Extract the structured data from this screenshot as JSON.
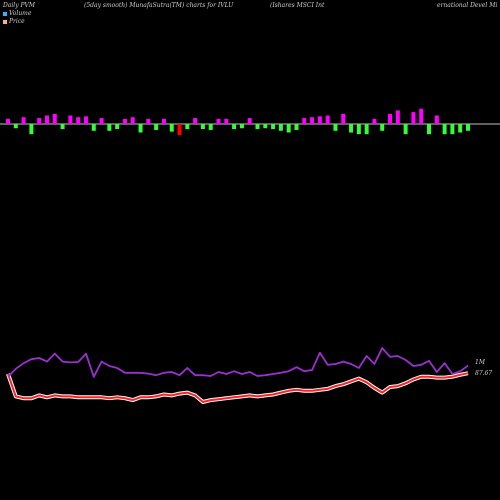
{
  "header": {
    "left": "Daily PVM",
    "smooth": "(5day smooth) MunafaSutra(TM) charts for IVLU",
    "name_part1": "(Ishares MSCI Int",
    "name_part2": "ernational Devel Mi"
  },
  "legend": {
    "volume_label": "Volume",
    "price_label": "Price",
    "volume_color": "#2db7ff",
    "price_color": "#ffb07a"
  },
  "colors": {
    "background": "#000000",
    "pos_bar": "#ff00ff",
    "neg_bar": "#33ff33",
    "mixed_bar": "#ff0000",
    "price_line": "#ff2020",
    "price_glow": "#ffffff",
    "volume_line": "#9b30d0",
    "baseline": "#ffffff"
  },
  "chart_data": {
    "type": "line",
    "x": [
      1,
      2,
      3,
      4,
      5,
      6,
      7,
      8,
      9,
      10,
      11,
      12,
      13,
      14,
      15,
      16,
      17,
      18,
      19,
      20,
      21,
      22,
      23,
      24,
      25,
      26,
      27,
      28,
      29,
      30,
      31,
      32,
      33,
      34,
      35,
      36,
      37,
      38,
      39,
      40,
      41,
      42,
      43,
      44,
      45,
      46,
      47,
      48,
      49,
      50,
      51,
      52,
      53,
      54,
      55,
      56,
      57,
      58,
      59,
      60
    ],
    "flow_bars": [
      6,
      -5,
      8,
      -12,
      7,
      10,
      12,
      -6,
      10,
      8,
      9,
      -8,
      7,
      -8,
      -6,
      6,
      8,
      -10,
      6,
      -7,
      6,
      -9,
      -13,
      -6,
      7,
      -6,
      -7,
      6,
      6,
      -6,
      -5,
      7,
      -6,
      -5,
      -6,
      -8,
      -10,
      -7,
      7,
      8,
      9,
      10,
      -8,
      12,
      -10,
      -12,
      -12,
      6,
      -8,
      12,
      16,
      -12,
      14,
      18,
      -12,
      10,
      -12,
      -12,
      -10,
      -8
    ],
    "mixed_bars": [
      22
    ],
    "series": [
      {
        "name": "Price",
        "axis_label": "87.67",
        "values": [
          87.6,
          85.2,
          85.0,
          85.0,
          85.3,
          85.1,
          85.3,
          85.2,
          85.2,
          85.1,
          85.1,
          85.1,
          85.1,
          85.0,
          85.1,
          85.0,
          84.8,
          85.1,
          85.1,
          85.2,
          85.4,
          85.3,
          85.5,
          85.6,
          85.3,
          84.6,
          84.8,
          84.9,
          85.0,
          85.1,
          85.2,
          85.3,
          85.2,
          85.3,
          85.4,
          85.6,
          85.8,
          85.9,
          85.8,
          85.8,
          85.9,
          86.0,
          86.3,
          86.5,
          86.8,
          87.1,
          86.7,
          86.1,
          85.6,
          86.2,
          86.3,
          86.6,
          87.0,
          87.3,
          87.3,
          87.2,
          87.2,
          87.3,
          87.5,
          87.67
        ]
      },
      {
        "name": "Volume",
        "axis_label": "1M",
        "values": [
          1.08,
          1.28,
          1.42,
          1.52,
          1.55,
          1.46,
          1.66,
          1.46,
          1.44,
          1.45,
          1.66,
          1.08,
          1.46,
          1.35,
          1.3,
          1.18,
          1.18,
          1.18,
          1.16,
          1.12,
          1.18,
          1.2,
          1.12,
          1.3,
          1.12,
          1.12,
          1.1,
          1.2,
          1.15,
          1.22,
          1.15,
          1.2,
          1.1,
          1.12,
          1.15,
          1.18,
          1.22,
          1.32,
          1.22,
          1.25,
          1.68,
          1.38,
          1.4,
          1.46,
          1.4,
          1.3,
          1.6,
          1.4,
          1.8,
          1.58,
          1.6,
          1.5,
          1.35,
          1.38,
          1.48,
          1.2,
          1.42,
          1.15,
          1.22,
          1.36
        ]
      }
    ]
  }
}
